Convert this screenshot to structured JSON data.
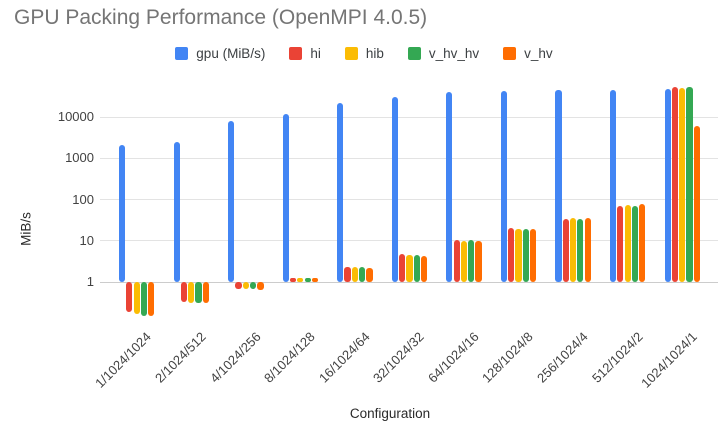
{
  "title": "GPU Packing Performance (OpenMPI 4.0.5)",
  "chart_data": {
    "type": "bar",
    "title": "GPU Packing Performance (OpenMPI 4.0.5)",
    "xlabel": "Configuration",
    "ylabel": "MiB/s",
    "y_scale": "log",
    "y_ticks": [
      1,
      10,
      100,
      1000,
      10000
    ],
    "ylim": [
      0.09,
      60000
    ],
    "bar_baseline": 1,
    "grid": true,
    "legend_position": "top",
    "background": "#ffffff",
    "gridline_color": "#e3e3e3",
    "title_color": "#757575",
    "categories": [
      "1/1024/1024",
      "2/1024/512",
      "4/1024/256",
      "8/1024/128",
      "16/1024/64",
      "32/1024/32",
      "64/1024/16",
      "128/1024/8",
      "256/1024/4",
      "512/1024/2",
      "1024/1024/1"
    ],
    "series": [
      {
        "name": "gpu (MiB/s)",
        "color": "#4285F4",
        "values": [
          2100,
          2500,
          7800,
          11700,
          21000,
          30500,
          39000,
          42000,
          44000,
          44000,
          46000
        ]
      },
      {
        "name": "hi",
        "color": "#EA4335",
        "values": [
          0.18,
          0.33,
          0.68,
          1.25,
          2.3,
          4.7,
          10.2,
          20,
          34,
          68,
          53000
        ]
      },
      {
        "name": "hib",
        "color": "#FBBC04",
        "values": [
          0.16,
          0.31,
          0.66,
          1.2,
          2.25,
          4.4,
          9.9,
          19,
          35,
          74,
          50000
        ]
      },
      {
        "name": "v_hv_hv",
        "color": "#34A853",
        "values": [
          0.15,
          0.3,
          0.66,
          1.2,
          2.3,
          4.5,
          10.0,
          19.5,
          34,
          70,
          53000
        ]
      },
      {
        "name": "v_hv",
        "color": "#FF6D01",
        "values": [
          0.15,
          0.31,
          0.64,
          1.2,
          2.2,
          4.3,
          9.8,
          19,
          35,
          75,
          6000
        ]
      }
    ]
  }
}
